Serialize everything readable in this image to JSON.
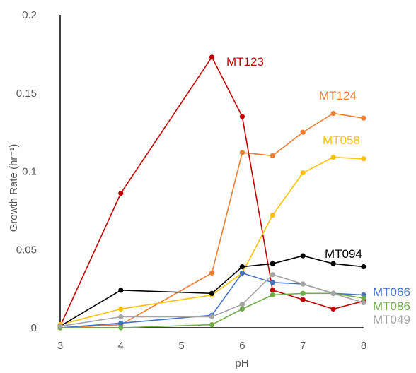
{
  "chart_data": {
    "type": "line",
    "title": "",
    "xlabel": "pH",
    "ylabel": "Growth Rate (hr⁻¹)",
    "xlim": [
      3,
      8
    ],
    "ylim": [
      0,
      0.2
    ],
    "x_ticks": [
      3,
      4,
      5,
      6,
      7,
      8
    ],
    "x_tick_labels": [
      "3",
      "4",
      "5",
      "6",
      "7",
      "8"
    ],
    "y_ticks": [
      0,
      0.05,
      0.1,
      0.15,
      0.2
    ],
    "y_tick_labels": [
      "0",
      "0.05",
      "0.1",
      "0.15",
      "0.2"
    ],
    "grid": false,
    "legend": "none (series labelled directly)",
    "series": [
      {
        "name": "MT123",
        "color": "#c00000",
        "x": [
          3,
          4,
          5.5,
          6,
          6.5,
          7,
          7.5,
          8
        ],
        "y": [
          0.001,
          0.086,
          0.173,
          0.135,
          0.024,
          0.018,
          0.012,
          0.017
        ]
      },
      {
        "name": "MT124",
        "color": "#ed7d31",
        "x": [
          3,
          4,
          5.5,
          6,
          6.5,
          7,
          7.5,
          8
        ],
        "y": [
          0.0,
          0.002,
          0.035,
          0.112,
          0.11,
          0.125,
          0.137,
          0.134
        ]
      },
      {
        "name": "MT058",
        "color": "#ffc000",
        "x": [
          3,
          4,
          5.5,
          6,
          6.5,
          7,
          7.5,
          8
        ],
        "y": [
          0.002,
          0.012,
          0.021,
          0.035,
          0.072,
          0.099,
          0.109,
          0.108
        ]
      },
      {
        "name": "MT094",
        "color": "#000000",
        "x": [
          3,
          4,
          5.5,
          6,
          6.5,
          7,
          7.5,
          8
        ],
        "y": [
          0.001,
          0.024,
          0.022,
          0.039,
          0.041,
          0.046,
          0.041,
          0.039
        ]
      },
      {
        "name": "MT066",
        "color": "#4472c4",
        "x": [
          3,
          4,
          5.5,
          6,
          6.5,
          7,
          7.5,
          8
        ],
        "y": [
          0.0,
          0.003,
          0.008,
          0.035,
          0.029,
          0.028,
          0.022,
          0.021
        ]
      },
      {
        "name": "MT086",
        "color": "#70ad47",
        "x": [
          3,
          4,
          5.5,
          6,
          6.5,
          7,
          7.5,
          8
        ],
        "y": [
          0.0,
          0.0,
          0.002,
          0.012,
          0.021,
          0.022,
          0.022,
          0.019
        ]
      },
      {
        "name": "MT049",
        "color": "#a5a5a5",
        "x": [
          3,
          4,
          5.5,
          6,
          6.5,
          7,
          7.5,
          8
        ],
        "y": [
          0.001,
          0.007,
          0.007,
          0.015,
          0.034,
          0.028,
          0.022,
          0.016
        ]
      }
    ]
  }
}
